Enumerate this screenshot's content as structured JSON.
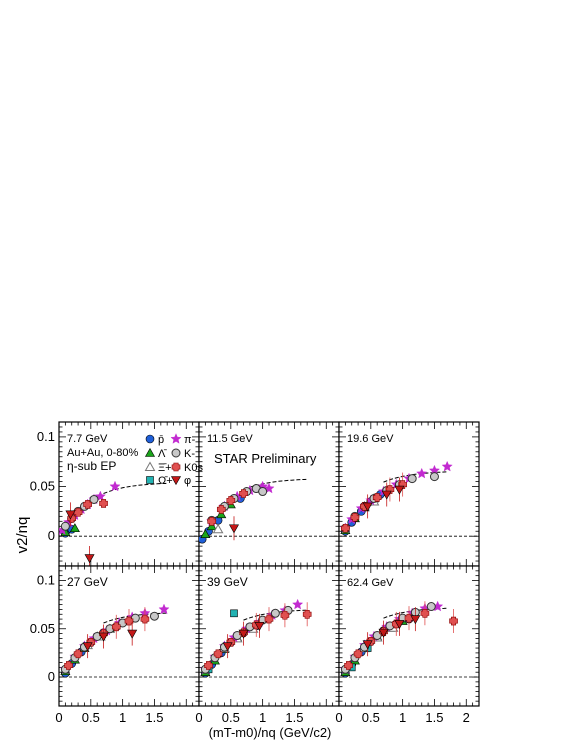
{
  "figure": {
    "ylabel": "v2/nq",
    "xlabel": "(mT-m0)/nq (GeV/c2)",
    "system_label": "Au+Au, 0-80%",
    "method_label": "η-sub EP",
    "preliminary_label": "STAR Preliminary"
  },
  "legend": [
    {
      "name": "p̄",
      "marker": "circle",
      "color": "#1f5fd8"
    },
    {
      "name": "Λ̄",
      "marker": "triangle",
      "color": "#1aa51a"
    },
    {
      "name": "Ξ̄+",
      "marker": "triangle-open",
      "color": "#888888"
    },
    {
      "name": "Ω̄+",
      "marker": "square",
      "color": "#22b3b3"
    },
    {
      "name": "π-",
      "marker": "star",
      "color": "#c22ad0"
    },
    {
      "name": "K-",
      "marker": "circle-open",
      "color": "#999999"
    },
    {
      "name": "K0s",
      "marker": "cross",
      "color": "#e05050"
    },
    {
      "name": "φ",
      "marker": "triangle-down",
      "color": "#c41818"
    }
  ],
  "chart_data": [
    {
      "type": "scatter",
      "title": "7.7 GeV",
      "xlim": [
        0,
        2.2
      ],
      "ylim": [
        -0.03,
        0.115
      ],
      "x_ticks": [
        "0",
        "0.5",
        "1",
        "1.5",
        "2"
      ],
      "y_ticks": [
        "0",
        "0.05",
        "0.1"
      ],
      "series": [
        {
          "name": "p̄",
          "x": [
            0.1,
            0.2
          ],
          "y": [
            0.003,
            0.007
          ]
        },
        {
          "name": "Λ̄",
          "x": [
            0.1,
            0.25
          ],
          "y": [
            0.004,
            0.008
          ]
        },
        {
          "name": "π-",
          "x": [
            0.05,
            0.15,
            0.25,
            0.35,
            0.45,
            0.55,
            0.65,
            0.88
          ],
          "y": [
            0.006,
            0.014,
            0.021,
            0.027,
            0.032,
            0.037,
            0.04,
            0.05
          ]
        },
        {
          "name": "K-",
          "x": [
            0.1,
            0.2,
            0.3,
            0.4,
            0.55
          ],
          "y": [
            0.01,
            0.018,
            0.025,
            0.03,
            0.037
          ]
        },
        {
          "name": "K0s",
          "x": [
            0.2,
            0.3,
            0.45,
            0.7
          ],
          "y": [
            0.018,
            0.024,
            0.032,
            0.033
          ]
        },
        {
          "name": "φ",
          "x": [
            0.18,
            0.48
          ],
          "y": [
            0.022,
            -0.022
          ]
        }
      ]
    },
    {
      "type": "scatter",
      "title": "11.5 GeV",
      "xlim": [
        0,
        2.2
      ],
      "ylim": [
        -0.03,
        0.115
      ],
      "x_ticks": [
        "0",
        "0.5",
        "1",
        "1.5",
        "2"
      ],
      "y_ticks": [
        "0",
        "0.05",
        "0.1"
      ],
      "series": [
        {
          "name": "p̄",
          "x": [
            0.05,
            0.15,
            0.3,
            0.65
          ],
          "y": [
            -0.003,
            0.005,
            0.016,
            0.038
          ]
        },
        {
          "name": "Λ̄",
          "x": [
            0.1,
            0.2,
            0.35,
            0.5
          ],
          "y": [
            0.002,
            0.01,
            0.022,
            0.032
          ]
        },
        {
          "name": "Ξ̄+",
          "x": [
            0.3
          ],
          "y": [
            0.007
          ]
        },
        {
          "name": "π-",
          "x": [
            0.2,
            0.4,
            0.6,
            0.8,
            1.0,
            1.1
          ],
          "y": [
            0.015,
            0.03,
            0.04,
            0.046,
            0.05,
            0.048
          ]
        },
        {
          "name": "K-",
          "x": [
            0.2,
            0.4,
            0.55,
            0.75,
            0.9,
            1.0
          ],
          "y": [
            0.016,
            0.03,
            0.038,
            0.045,
            0.048,
            0.045
          ]
        },
        {
          "name": "K0s",
          "x": [
            0.2,
            0.35,
            0.5,
            0.7
          ],
          "y": [
            0.015,
            0.027,
            0.036,
            0.043
          ]
        },
        {
          "name": "φ",
          "x": [
            0.55
          ],
          "y": [
            0.008
          ]
        }
      ]
    },
    {
      "type": "scatter",
      "title": "19.6 GeV",
      "xlim": [
        0,
        2.2
      ],
      "ylim": [
        -0.03,
        0.115
      ],
      "x_ticks": [
        "0",
        "0.5",
        "1",
        "1.5",
        "2"
      ],
      "y_ticks": [
        "0",
        "0.05",
        "0.1"
      ],
      "series": [
        {
          "name": "p̄",
          "x": [
            0.1,
            0.2,
            0.35,
            0.5,
            0.65
          ],
          "y": [
            0.005,
            0.014,
            0.025,
            0.035,
            0.042
          ]
        },
        {
          "name": "Λ̄",
          "x": [
            0.1,
            0.25,
            0.4,
            0.55
          ],
          "y": [
            0.006,
            0.018,
            0.029,
            0.038
          ]
        },
        {
          "name": "Ξ̄+",
          "x": [
            0.4,
            0.55
          ],
          "y": [
            0.03,
            0.035
          ]
        },
        {
          "name": "π-",
          "x": [
            0.1,
            0.2,
            0.35,
            0.5,
            0.7,
            0.9,
            1.1,
            1.3,
            1.5,
            1.7
          ],
          "y": [
            0.008,
            0.017,
            0.028,
            0.036,
            0.045,
            0.052,
            0.058,
            0.063,
            0.066,
            0.07
          ]
        },
        {
          "name": "K-",
          "x": [
            0.1,
            0.25,
            0.4,
            0.55,
            0.75,
            0.95,
            1.15,
            1.5
          ],
          "y": [
            0.008,
            0.02,
            0.03,
            0.038,
            0.046,
            0.052,
            0.058,
            0.06
          ]
        },
        {
          "name": "K0s",
          "x": [
            0.1,
            0.25,
            0.4,
            0.6,
            0.8,
            1.0
          ],
          "y": [
            0.008,
            0.019,
            0.03,
            0.039,
            0.047,
            0.052
          ]
        },
        {
          "name": "φ",
          "x": [
            0.45,
            0.75,
            0.95
          ],
          "y": [
            0.03,
            0.042,
            0.047
          ]
        }
      ]
    },
    {
      "type": "scatter",
      "title": "27 GeV",
      "xlim": [
        0,
        2.2
      ],
      "ylim": [
        -0.03,
        0.115
      ],
      "x_ticks": [
        "0",
        "0.5",
        "1",
        "1.5",
        "2"
      ],
      "y_ticks": [
        "0",
        "0.05",
        "0.1"
      ],
      "series": [
        {
          "name": "p̄",
          "x": [
            0.1,
            0.2,
            0.35,
            0.5,
            0.7,
            0.9
          ],
          "y": [
            0.004,
            0.014,
            0.026,
            0.036,
            0.046,
            0.052
          ]
        },
        {
          "name": "Λ̄",
          "x": [
            0.1,
            0.25,
            0.4,
            0.6,
            0.8
          ],
          "y": [
            0.006,
            0.018,
            0.03,
            0.042,
            0.05
          ]
        },
        {
          "name": "Ξ̄+",
          "x": [
            0.45,
            0.65
          ],
          "y": [
            0.033,
            0.042
          ]
        },
        {
          "name": "π-",
          "x": [
            0.1,
            0.25,
            0.4,
            0.55,
            0.75,
            0.95,
            1.15,
            1.35,
            1.65
          ],
          "y": [
            0.008,
            0.021,
            0.032,
            0.04,
            0.048,
            0.056,
            0.062,
            0.066,
            0.07
          ]
        },
        {
          "name": "K-",
          "x": [
            0.1,
            0.25,
            0.4,
            0.6,
            0.8,
            1.0,
            1.2,
            1.5
          ],
          "y": [
            0.008,
            0.02,
            0.031,
            0.042,
            0.05,
            0.056,
            0.061,
            0.063
          ]
        },
        {
          "name": "K0s",
          "x": [
            0.15,
            0.3,
            0.5,
            0.7,
            0.9,
            1.1,
            1.35
          ],
          "y": [
            0.012,
            0.024,
            0.036,
            0.045,
            0.052,
            0.058,
            0.06
          ]
        },
        {
          "name": "φ",
          "x": [
            0.45,
            0.7,
            1.15
          ],
          "y": [
            0.032,
            0.042,
            0.045
          ]
        }
      ]
    },
    {
      "type": "scatter",
      "title": "39 GeV",
      "xlim": [
        0,
        2.2
      ],
      "ylim": [
        -0.03,
        0.115
      ],
      "x_ticks": [
        "0",
        "0.5",
        "1",
        "1.5",
        "2"
      ],
      "y_ticks": [
        "0",
        "0.05",
        "0.1"
      ],
      "series": [
        {
          "name": "p̄",
          "x": [
            0.1,
            0.2,
            0.35,
            0.5,
            0.7,
            0.9
          ],
          "y": [
            0.004,
            0.013,
            0.025,
            0.036,
            0.046,
            0.053
          ]
        },
        {
          "name": "Λ̄",
          "x": [
            0.1,
            0.25,
            0.4,
            0.6,
            0.8
          ],
          "y": [
            0.005,
            0.017,
            0.029,
            0.041,
            0.05
          ]
        },
        {
          "name": "Ξ̄+",
          "x": [
            0.4,
            0.6,
            0.85
          ],
          "y": [
            0.03,
            0.04,
            0.05
          ]
        },
        {
          "name": "Ω̄+",
          "x": [
            0.15,
            0.55
          ],
          "y": [
            0.008,
            0.066
          ]
        },
        {
          "name": "π-",
          "x": [
            0.1,
            0.25,
            0.4,
            0.55,
            0.75,
            0.95,
            1.15,
            1.35,
            1.55
          ],
          "y": [
            0.008,
            0.021,
            0.032,
            0.041,
            0.05,
            0.057,
            0.064,
            0.069,
            0.075
          ]
        },
        {
          "name": "K-",
          "x": [
            0.1,
            0.25,
            0.4,
            0.6,
            0.8,
            1.0,
            1.2,
            1.4
          ],
          "y": [
            0.008,
            0.02,
            0.031,
            0.043,
            0.052,
            0.059,
            0.066,
            0.069
          ]
        },
        {
          "name": "K0s",
          "x": [
            0.15,
            0.3,
            0.5,
            0.7,
            0.9,
            1.1,
            1.35,
            1.7
          ],
          "y": [
            0.012,
            0.024,
            0.036,
            0.046,
            0.054,
            0.06,
            0.064,
            0.065
          ]
        },
        {
          "name": "φ",
          "x": [
            0.45,
            0.7,
            0.95
          ],
          "y": [
            0.032,
            0.045,
            0.053
          ]
        }
      ]
    },
    {
      "type": "scatter",
      "title": "62.4 GeV",
      "xlim": [
        0,
        2.2
      ],
      "ylim": [
        -0.03,
        0.115
      ],
      "x_ticks": [
        "0",
        "0.5",
        "1",
        "1.5",
        "2"
      ],
      "y_ticks": [
        "0",
        "0.05",
        "0.1"
      ],
      "series": [
        {
          "name": "p̄",
          "x": [
            0.1,
            0.2,
            0.35,
            0.5,
            0.7,
            0.9,
            1.1
          ],
          "y": [
            0.004,
            0.013,
            0.026,
            0.037,
            0.048,
            0.055,
            0.06
          ]
        },
        {
          "name": "Λ̄",
          "x": [
            0.1,
            0.25,
            0.4,
            0.6,
            0.8,
            1.0
          ],
          "y": [
            0.005,
            0.017,
            0.03,
            0.042,
            0.051,
            0.058
          ]
        },
        {
          "name": "Ξ̄+",
          "x": [
            0.4,
            0.6,
            0.85
          ],
          "y": [
            0.03,
            0.041,
            0.051
          ]
        },
        {
          "name": "Ω̄+",
          "x": [
            0.2,
            0.45
          ],
          "y": [
            0.01,
            0.03
          ]
        },
        {
          "name": "π-",
          "x": [
            0.1,
            0.25,
            0.4,
            0.55,
            0.75,
            0.95,
            1.15,
            1.35,
            1.55
          ],
          "y": [
            0.008,
            0.021,
            0.033,
            0.042,
            0.052,
            0.06,
            0.066,
            0.071,
            0.073
          ]
        },
        {
          "name": "K-",
          "x": [
            0.1,
            0.25,
            0.4,
            0.6,
            0.8,
            1.0,
            1.2,
            1.45
          ],
          "y": [
            0.008,
            0.02,
            0.031,
            0.043,
            0.053,
            0.061,
            0.067,
            0.073
          ]
        },
        {
          "name": "K0s",
          "x": [
            0.15,
            0.3,
            0.5,
            0.7,
            0.9,
            1.1,
            1.35,
            1.8
          ],
          "y": [
            0.012,
            0.024,
            0.037,
            0.047,
            0.055,
            0.061,
            0.066,
            0.058
          ]
        },
        {
          "name": "φ",
          "x": [
            0.45,
            0.7,
            0.95,
            1.2
          ],
          "y": [
            0.034,
            0.046,
            0.055,
            0.06
          ]
        }
      ]
    }
  ]
}
